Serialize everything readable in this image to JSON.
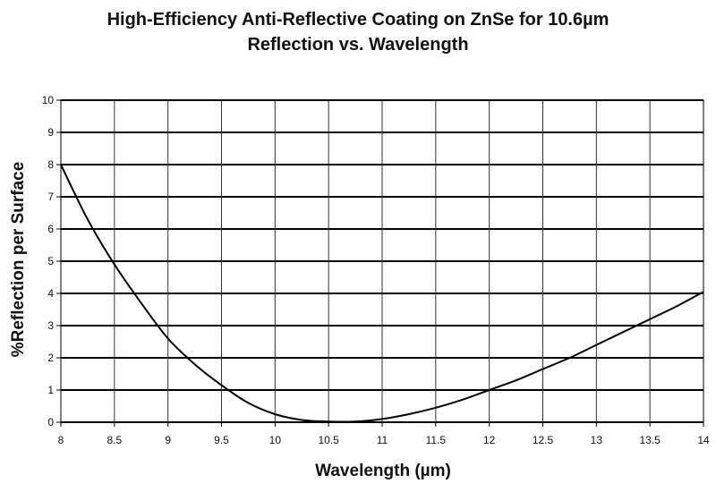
{
  "chart_data": {
    "type": "line",
    "title": "High-Efficiency Anti-Reflective Coating on ZnSe for 10.6µm",
    "subtitle": "Reflection vs. Wavelength",
    "xlabel": "Wavelength (µm)",
    "ylabel": "%Reflection per Surface",
    "xlim": [
      8,
      14
    ],
    "ylim": [
      0,
      10
    ],
    "xticks": [
      "8",
      "8.5",
      "9",
      "9.5",
      "10",
      "10.5",
      "11",
      "11.5",
      "12",
      "12.5",
      "13",
      "13.5",
      "14"
    ],
    "yticks": [
      "0",
      "1",
      "2",
      "3",
      "4",
      "5",
      "6",
      "7",
      "8",
      "9",
      "10"
    ],
    "grid": true,
    "legend": "none",
    "series": [
      {
        "name": "Reflection",
        "x": [
          8.0,
          8.25,
          8.5,
          8.75,
          9.0,
          9.25,
          9.5,
          9.75,
          10.0,
          10.25,
          10.5,
          10.75,
          11.0,
          11.25,
          11.5,
          11.75,
          12.0,
          12.25,
          12.5,
          12.75,
          13.0,
          13.25,
          13.5,
          13.75,
          14.0
        ],
        "values": [
          8.0,
          6.3,
          4.9,
          3.7,
          2.6,
          1.8,
          1.15,
          0.6,
          0.25,
          0.07,
          0.02,
          0.02,
          0.1,
          0.25,
          0.45,
          0.7,
          1.0,
          1.3,
          1.65,
          2.0,
          2.4,
          2.8,
          3.2,
          3.6,
          4.05
        ]
      }
    ]
  }
}
